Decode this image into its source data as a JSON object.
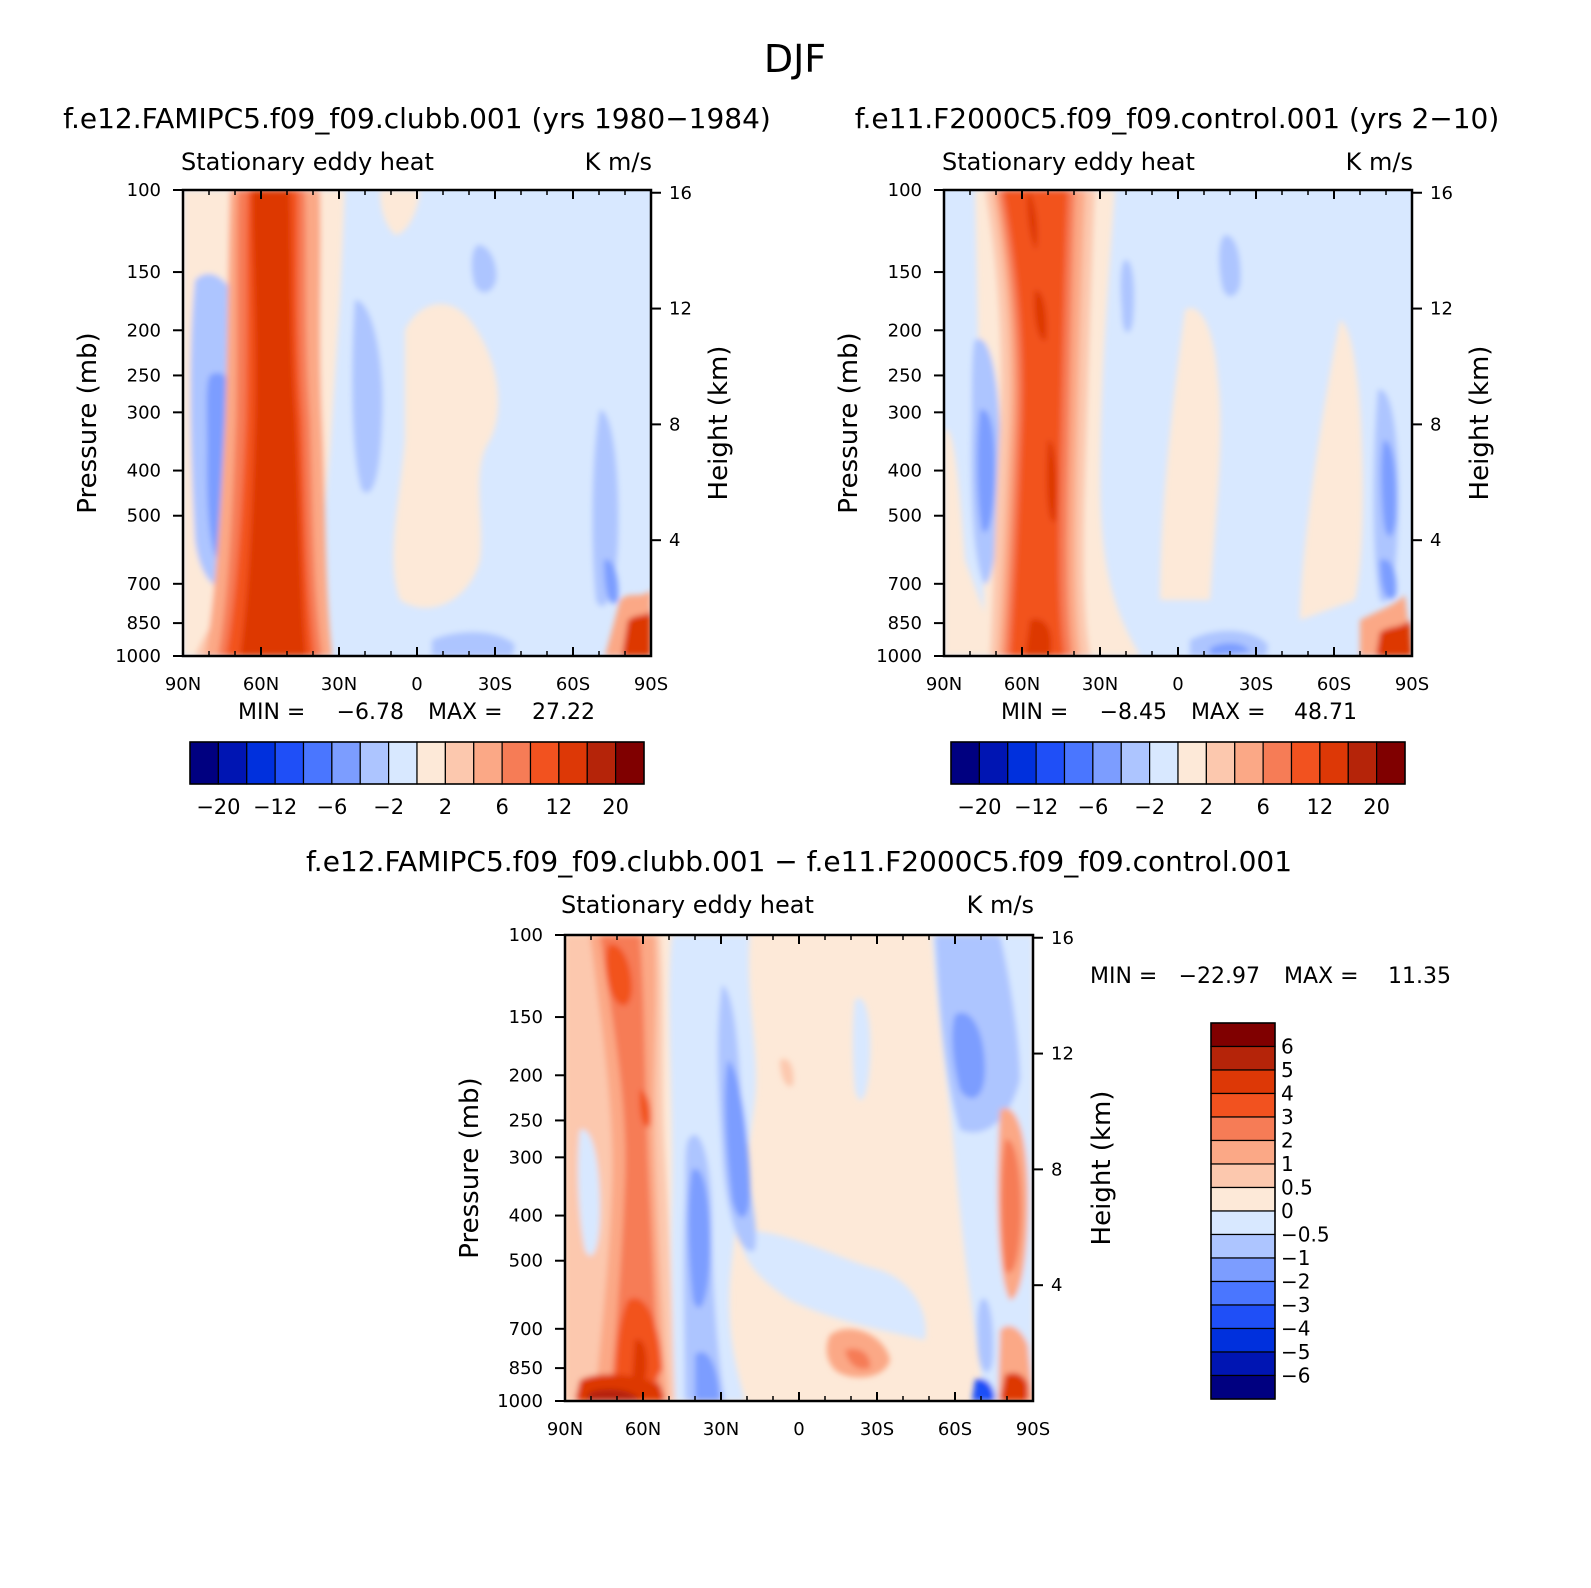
{
  "figure": {
    "title": "DJF"
  },
  "colors": {
    "main_levels": [
      "#000080",
      "#0015b3",
      "#0030dd",
      "#1f4ff7",
      "#4a76ff",
      "#7c9dff",
      "#adc5ff",
      "#d8e8ff",
      "#fde9d8",
      "#fcc8ae",
      "#fba886",
      "#f67c56",
      "#f2521f",
      "#dd3806",
      "#b52409",
      "#800000"
    ],
    "diff_levels": [
      "#000080",
      "#0015b3",
      "#0030dd",
      "#1f4ff7",
      "#4a76ff",
      "#7c9dff",
      "#adc5ff",
      "#d8e8ff",
      "#fde9d8",
      "#fcc8ae",
      "#fba886",
      "#f67c56",
      "#f2521f",
      "#dd3806",
      "#b52409",
      "#800000"
    ]
  },
  "chart_data": [
    {
      "id": "panel-clubb",
      "type": "heatmap",
      "title": "f.e12.FAMIPC5.f09_f09.clubb.001 (yrs 1980−1984)",
      "subtitle_left": "Stationary eddy heat",
      "subtitle_right": "K m/s",
      "ylabel": "Pressure (mb)",
      "y2label": "Height (km)",
      "xticks": [
        "90N",
        "60N",
        "30N",
        "0",
        "30S",
        "60S",
        "90S"
      ],
      "yticks": [
        "100",
        "150",
        "200",
        "250",
        "300",
        "400",
        "500",
        "700",
        "850",
        "1000"
      ],
      "yticks_right": [
        "16",
        "12",
        "8",
        "4"
      ],
      "min_label": "MIN =",
      "min_value": "−6.78",
      "max_label": "MAX =",
      "max_value": "27.22",
      "colorbar_labels": [
        "−20",
        "−12",
        "−6",
        "−2",
        "2",
        "6",
        "12",
        "20"
      ],
      "approx_features": {
        "strong_positive_band_lat": "55N-40N",
        "peak": 27.22,
        "negative_pocket": "80N-70N, 300-700 mb",
        "min": -6.78
      }
    },
    {
      "id": "panel-control",
      "type": "heatmap",
      "title": "f.e11.F2000C5.f09_f09.control.001 (yrs 2−10)",
      "subtitle_left": "Stationary eddy heat",
      "subtitle_right": "K m/s",
      "ylabel": "Pressure (mb)",
      "y2label": "Height (km)",
      "xticks": [
        "90N",
        "60N",
        "30N",
        "0",
        "30S",
        "60S",
        "90S"
      ],
      "yticks": [
        "100",
        "150",
        "200",
        "250",
        "300",
        "400",
        "500",
        "700",
        "850",
        "1000"
      ],
      "yticks_right": [
        "16",
        "12",
        "8",
        "4"
      ],
      "min_label": "MIN =",
      "min_value": "−8.45",
      "max_label": "MAX =",
      "max_value": "48.71",
      "colorbar_labels": [
        "−20",
        "−12",
        "−6",
        "−2",
        "2",
        "6",
        "12",
        "20"
      ],
      "approx_features": {
        "strong_positive_band_lat": "60N-40N",
        "peak": 48.71,
        "negative_pocket": "80N-70N, 250-700 mb",
        "min": -8.45
      }
    },
    {
      "id": "panel-diff",
      "type": "heatmap",
      "title": "f.e12.FAMIPC5.f09_f09.clubb.001 − f.e11.F2000C5.f09_f09.control.001",
      "subtitle_left": "Stationary eddy heat",
      "subtitle_right": "K m/s",
      "ylabel": "Pressure (mb)",
      "y2label": "Height (km)",
      "xticks": [
        "90N",
        "60N",
        "30N",
        "0",
        "30S",
        "60S",
        "90S"
      ],
      "yticks": [
        "100",
        "150",
        "200",
        "250",
        "300",
        "400",
        "500",
        "700",
        "850",
        "1000"
      ],
      "yticks_right": [
        "16",
        "12",
        "8",
        "4"
      ],
      "min_label": "MIN =",
      "min_value": "−22.97",
      "max_label": "MAX =",
      "max_value": "11.35",
      "colorbar_labels": [
        "6",
        "5",
        "4",
        "3",
        "2",
        "1",
        "0.5",
        "0",
        "−0.5",
        "−1",
        "−2",
        "−3",
        "−4",
        "−5",
        "−6"
      ],
      "approx_features": {
        "positive_band_lat": "70N-50N",
        "negative_band_lat": "40N-20N",
        "max": 11.35,
        "min": -22.97
      }
    }
  ]
}
